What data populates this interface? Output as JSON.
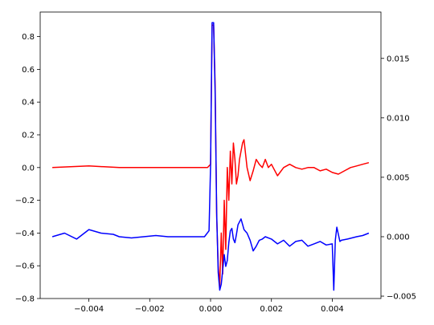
{
  "chart_data": {
    "type": "line",
    "title": "",
    "xlabel": "",
    "ylabel_left": "",
    "ylabel_right": "",
    "grid": false,
    "legend": "none",
    "xlim": [
      -0.0056,
      0.0056
    ],
    "ylim_left": [
      -0.8,
      0.95
    ],
    "ylim_right": [
      -0.0052,
      0.0189
    ],
    "x_ticks": [
      "−0.004",
      "−0.002",
      "0.000",
      "0.002",
      "0.004"
    ],
    "x_tick_values": [
      -0.004,
      -0.002,
      0.0,
      0.002,
      0.004
    ],
    "y_left_ticks": [
      "−0.8",
      "−0.6",
      "−0.4",
      "−0.2",
      "0.0",
      "0.2",
      "0.4",
      "0.6",
      "0.8"
    ],
    "y_left_tick_values": [
      -0.8,
      -0.6,
      -0.4,
      -0.2,
      0.0,
      0.2,
      0.4,
      0.6,
      0.8
    ],
    "y_right_ticks": [
      "−0.005",
      "0.000",
      "0.005",
      "0.010",
      "0.015"
    ],
    "y_right_tick_values": [
      -0.005,
      0.0,
      0.005,
      0.01,
      0.015
    ],
    "series": [
      {
        "axis": "left",
        "color": "#ff0000",
        "x": [
          -0.0052,
          -0.004,
          -0.003,
          -0.002,
          -0.001,
          -0.0001,
          0.0,
          5e-05,
          0.0001,
          0.00015,
          0.0002,
          0.00025,
          0.0003,
          0.00035,
          0.0004,
          0.00045,
          0.0005,
          0.00055,
          0.0006,
          0.00065,
          0.0007,
          0.00075,
          0.0008,
          0.00085,
          0.0009,
          0.00095,
          0.001,
          0.00105,
          0.0011,
          0.0012,
          0.0013,
          0.0014,
          0.0015,
          0.0016,
          0.0017,
          0.0018,
          0.0019,
          0.002,
          0.0022,
          0.0024,
          0.0026,
          0.0028,
          0.003,
          0.0032,
          0.0034,
          0.0036,
          0.0038,
          0.004,
          0.0042,
          0.0044,
          0.0046,
          0.0048,
          0.005,
          0.0052
        ],
        "y": [
          0.0,
          0.01,
          0.0,
          0.0,
          0.0,
          0.0,
          0.02,
          0.87,
          0.87,
          0.5,
          -0.3,
          -0.6,
          -0.73,
          -0.4,
          -0.65,
          -0.2,
          -0.5,
          0.0,
          -0.2,
          0.1,
          -0.1,
          0.15,
          0.05,
          -0.1,
          -0.05,
          0.05,
          0.1,
          0.15,
          0.17,
          0.0,
          -0.08,
          -0.02,
          0.05,
          0.02,
          0.0,
          0.05,
          0.0,
          0.02,
          -0.05,
          0.0,
          0.02,
          0.0,
          -0.01,
          0.0,
          0.0,
          -0.02,
          -0.01,
          -0.03,
          -0.04,
          -0.02,
          0.0,
          0.01,
          0.02,
          0.03
        ]
      },
      {
        "axis": "right",
        "color": "#0000ff",
        "x": [
          -0.0052,
          -0.0048,
          -0.0044,
          -0.004,
          -0.0036,
          -0.0032,
          -0.003,
          -0.0026,
          -0.0022,
          -0.0018,
          -0.0014,
          -0.001,
          -0.0006,
          -0.0002,
          -5e-05,
          0.0,
          5e-05,
          0.0001,
          0.00015,
          0.0002,
          0.00025,
          0.0003,
          0.00035,
          0.0004,
          0.00045,
          0.0005,
          0.00055,
          0.0006,
          0.00065,
          0.0007,
          0.00075,
          0.0008,
          0.00085,
          0.0009,
          0.001,
          0.0011,
          0.0012,
          0.0013,
          0.0014,
          0.0015,
          0.0016,
          0.0017,
          0.0018,
          0.002,
          0.0022,
          0.0024,
          0.0026,
          0.0028,
          0.003,
          0.0032,
          0.0034,
          0.0036,
          0.0038,
          0.004,
          0.00405,
          0.0041,
          0.00415,
          0.0042,
          0.00425,
          0.0043,
          0.0045,
          0.0048,
          0.005,
          0.0052
        ],
        "y": [
          0.0,
          0.0003,
          -0.0002,
          0.0006,
          0.0003,
          0.0002,
          0.0,
          -0.0001,
          0.0,
          0.0001,
          0.0,
          0.0,
          0.0,
          0.0,
          0.0005,
          0.006,
          0.018,
          0.018,
          0.012,
          0.002,
          -0.003,
          -0.0045,
          -0.004,
          -0.0028,
          -0.0015,
          -0.0025,
          -0.002,
          -0.0005,
          0.0005,
          0.0007,
          -0.0002,
          -0.0005,
          0.0002,
          0.001,
          0.0015,
          0.0006,
          0.0003,
          -0.0003,
          -0.0012,
          -0.0008,
          -0.0003,
          -0.0002,
          0.0,
          -0.0002,
          -0.0006,
          -0.0003,
          -0.0008,
          -0.0004,
          -0.0003,
          -0.0008,
          -0.0006,
          -0.0004,
          -0.0007,
          -0.0006,
          -0.0045,
          -0.0003,
          0.0008,
          0.0002,
          -0.0004,
          -0.0003,
          -0.0002,
          0.0,
          0.0001,
          0.0003
        ]
      }
    ]
  }
}
